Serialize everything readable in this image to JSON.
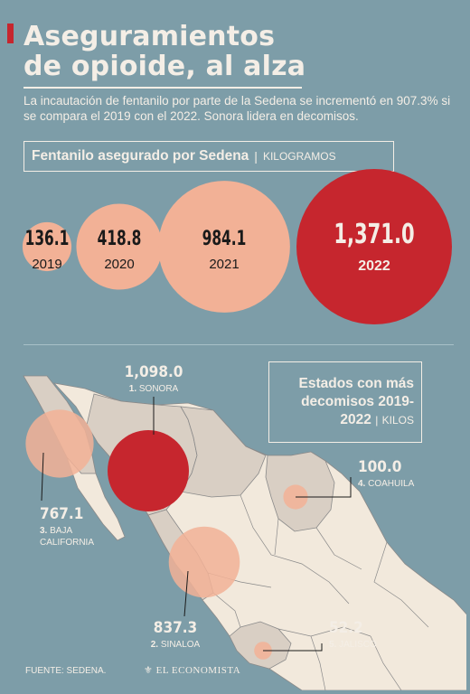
{
  "title_lines": [
    "Aseguramientos",
    "de opioide, al alza"
  ],
  "subtitle": "La incautación de fentanilo por parte de la Sedena se incrementó en 907.3% si se compara el 2019 con el 2022. Sonora lidera en decomisos.",
  "box1": {
    "title": "Fentanilo asegurado por Sedena",
    "separator": "|",
    "unit": "KILOGRAMOS"
  },
  "box2": {
    "title_lines": [
      "Estados con más",
      "decomisos 2019-"
    ],
    "year": "2022",
    "separator": "|",
    "unit": "KILOS"
  },
  "source": "FUENTE: SEDENA.",
  "brand": "EL ECONOMISTA",
  "colors": {
    "background": "#7d9da8",
    "salmon": "#f2b196",
    "red": "#c6262e",
    "cream": "#f4eee6",
    "land": "#f2e9dc",
    "land_dark": "#d9cfc4"
  },
  "chart_data": [
    {
      "type": "bubble",
      "title": "Fentanilo asegurado por Sedena",
      "unit": "KILOGRAMOS",
      "categories": [
        "2019",
        "2020",
        "2021",
        "2022"
      ],
      "values": [
        136.1,
        418.8,
        984.1,
        1371.0
      ],
      "value_labels": [
        "136.1",
        "418.8",
        "984.1",
        "1,371.0"
      ],
      "highlight": "2022"
    },
    {
      "type": "bubble-map",
      "title": "Estados con más decomisos 2019-2022",
      "unit": "KILOS",
      "ranks": [
        "1.",
        "2.",
        "3.",
        "4.",
        "5."
      ],
      "categories": [
        "SONORA",
        "SINALOA",
        "BAJA CALIFORNIA",
        "COAHUILA",
        "JALISCO"
      ],
      "category_lines": [
        [
          "SONORA"
        ],
        [
          "SINALOA"
        ],
        [
          "BAJA",
          "CALIFORNIA"
        ],
        [
          "COAHUILA"
        ],
        [
          "JALISCO"
        ]
      ],
      "values": [
        1098.0,
        837.3,
        767.1,
        100.0,
        52.2
      ],
      "value_labels": [
        "1,098.0",
        "837.3",
        "767.1",
        "100.0",
        "52.2"
      ],
      "highlight": "SONORA"
    }
  ]
}
